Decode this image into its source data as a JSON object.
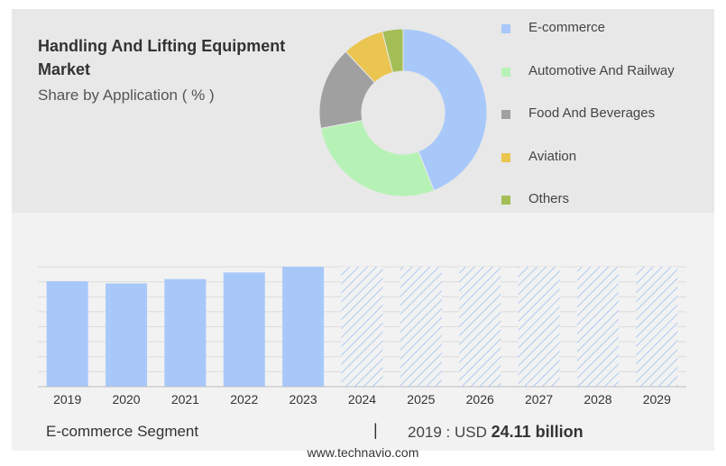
{
  "header": {
    "title": "Handling And Lifting Equipment Market",
    "subtitle": "Share by Application ( % )"
  },
  "chart_data": [
    {
      "type": "pie",
      "donut": true,
      "legend_position": "right",
      "categories": [
        "E-commerce",
        "Automotive And Railway",
        "Food And Beverages",
        "Aviation",
        "Others"
      ],
      "values": [
        44,
        28,
        16,
        8,
        4
      ],
      "colors": [
        "#a8c8fa",
        "#b6f2b6",
        "#a0a0a0",
        "#eac54f",
        "#a4be56"
      ]
    },
    {
      "type": "bar",
      "categories": [
        "2019",
        "2020",
        "2021",
        "2022",
        "2023",
        "2024",
        "2025",
        "2026",
        "2027",
        "2028",
        "2029"
      ],
      "values": [
        24.11,
        23.6,
        24.6,
        26.1,
        27.4,
        null,
        null,
        null,
        null,
        null,
        null
      ],
      "forecast_from": "2024",
      "ylim": [
        0,
        27.4
      ],
      "grid": true,
      "bar_color": "#a8c8fa",
      "forecast_color": "#9ec0f0"
    }
  ],
  "footer": {
    "segment": "E-commerce Segment",
    "separator": "|",
    "value_prefix": "2019 : USD",
    "value_bold": "24.11 billion",
    "source": "www.technavio.com"
  }
}
